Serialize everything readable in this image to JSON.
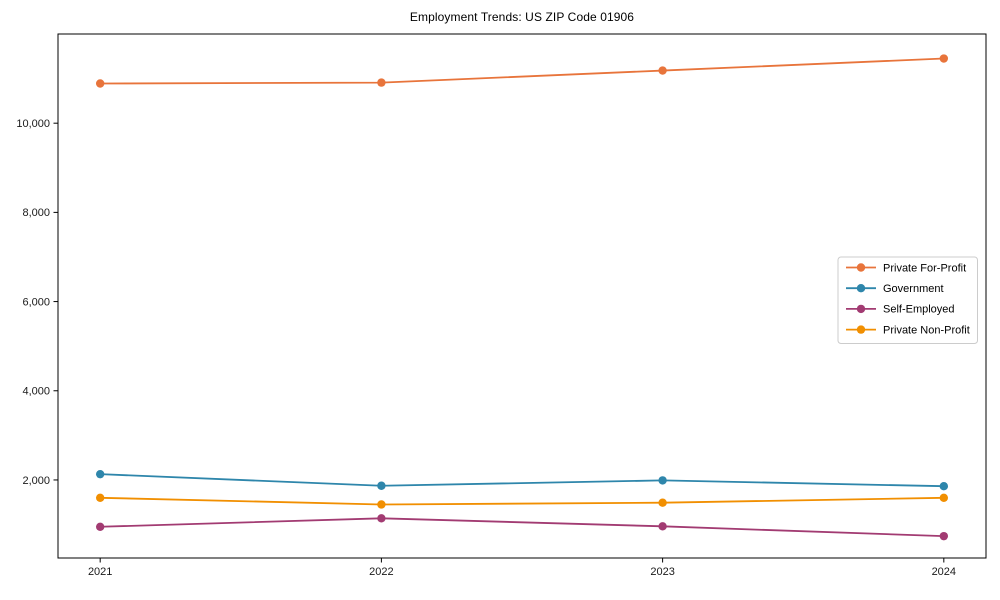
{
  "chart_data": {
    "type": "line",
    "title": "Employment Trends: US ZIP Code 01906",
    "xlabel": "",
    "ylabel": "",
    "categories": [
      2021,
      2022,
      2023,
      2024
    ],
    "xtick_labels": [
      "2021",
      "2022",
      "2023",
      "2024"
    ],
    "series": [
      {
        "name": "Private For-Profit",
        "color": "#E8743B",
        "values": [
          10890,
          10910,
          11180,
          11450
        ]
      },
      {
        "name": "Government",
        "color": "#2E86AB",
        "values": [
          2130,
          1870,
          1990,
          1860
        ]
      },
      {
        "name": "Self-Employed",
        "color": "#A23B72",
        "values": [
          950,
          1140,
          960,
          740
        ]
      },
      {
        "name": "Private Non-Profit",
        "color": "#F18F01",
        "values": [
          1600,
          1450,
          1490,
          1600
        ]
      }
    ],
    "yticks": [
      2000,
      4000,
      6000,
      8000,
      10000
    ],
    "ytick_labels": [
      "2,000",
      "4,000",
      "6,000",
      "8,000",
      "10,000"
    ],
    "ylim": [
      250,
      12000
    ],
    "xlim": [
      2020.85,
      2024.15
    ],
    "grid": false,
    "legend_position": "center right",
    "axis_color": "#000000",
    "tick_label_color": "#1a1a1a",
    "legend_border_color": "#cccccc",
    "background_color": "#ffffff"
  }
}
